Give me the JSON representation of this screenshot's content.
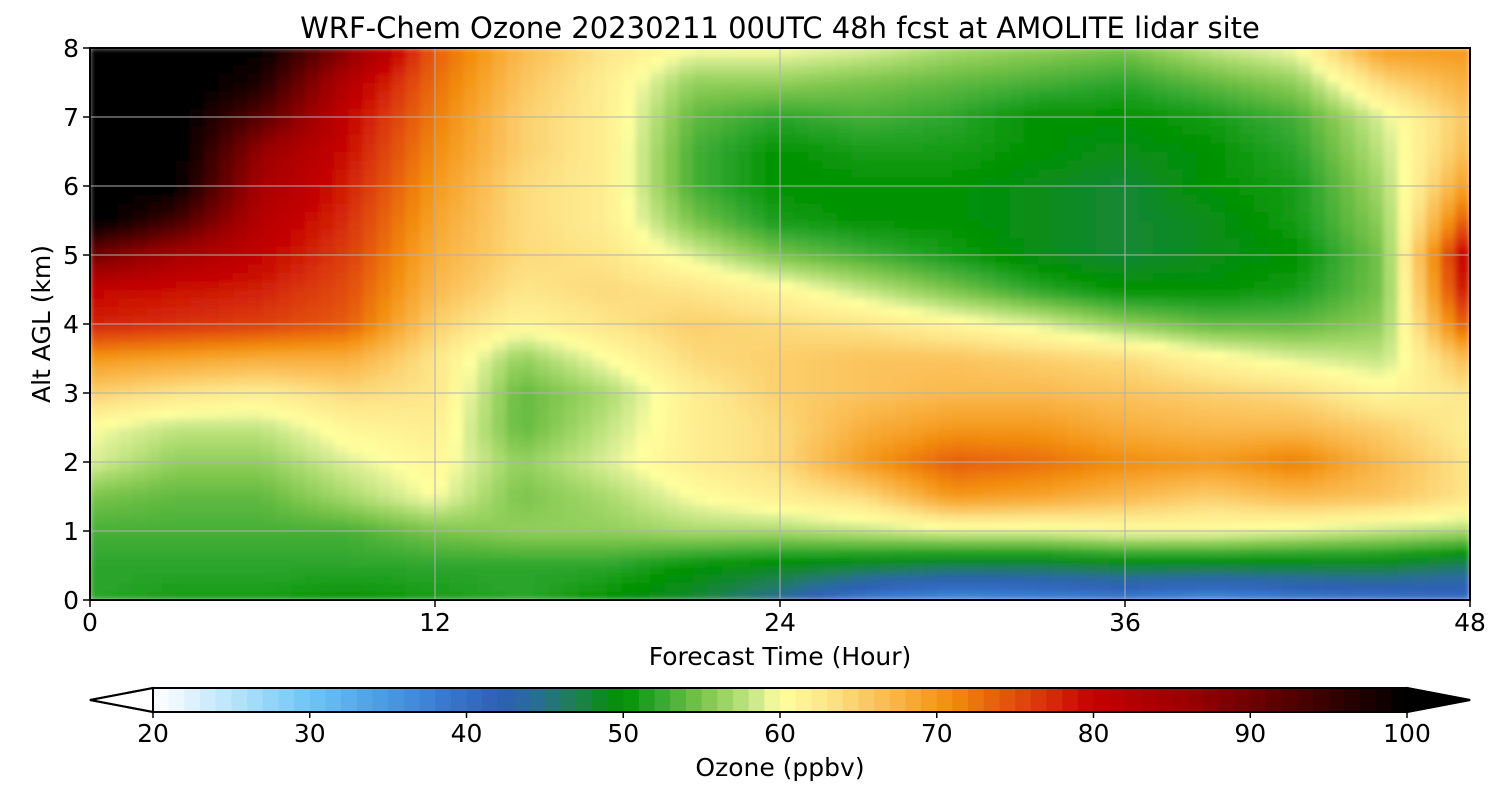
{
  "chart_data": {
    "type": "heatmap",
    "title": "WRF-Chem Ozone  20230211 00UTC 48h fcst at AMOLITE lidar site",
    "xlabel": "Forecast Time (Hour)",
    "ylabel": "Alt AGL (km)",
    "xlim": [
      0,
      48
    ],
    "ylim": [
      0,
      8
    ],
    "xticks": [
      "0",
      "12",
      "24",
      "36",
      "48"
    ],
    "yticks": [
      "0",
      "1",
      "2",
      "3",
      "4",
      "5",
      "6",
      "7",
      "8"
    ],
    "grid": true,
    "x_hours": [
      0,
      3,
      6,
      9,
      12,
      15,
      18,
      21,
      24,
      27,
      30,
      33,
      36,
      39,
      42,
      45,
      48
    ],
    "z_km": [
      0,
      0.5,
      1,
      1.5,
      2,
      2.5,
      3,
      3.5,
      4,
      4.5,
      5,
      5.5,
      6,
      6.5,
      7,
      7.5,
      8
    ],
    "ozone_ppbv": [
      [
        52,
        51,
        51,
        50,
        51,
        52,
        50,
        48,
        44,
        38,
        36,
        37,
        38,
        36,
        38,
        39,
        40
      ],
      [
        52,
        52,
        52,
        52,
        52,
        52,
        52,
        50,
        49,
        48,
        47,
        47,
        48,
        48,
        48,
        48,
        46
      ],
      [
        53,
        53,
        53,
        53,
        55,
        56,
        56,
        57,
        57,
        58,
        59,
        59,
        60,
        60,
        59,
        58,
        57
      ],
      [
        55,
        54,
        54,
        57,
        60,
        55,
        57,
        60,
        62,
        64,
        70,
        69,
        67,
        65,
        67,
        66,
        63
      ],
      [
        59,
        56,
        56,
        59,
        61,
        56,
        59,
        62,
        64,
        70,
        74,
        73,
        71,
        70,
        72,
        67,
        63
      ],
      [
        60,
        58,
        58,
        61,
        62,
        54,
        58,
        62,
        64,
        68,
        70,
        70,
        68,
        67,
        67,
        65,
        62
      ],
      [
        65,
        63,
        62,
        64,
        63,
        54,
        57,
        62,
        65,
        66,
        67,
        67,
        66,
        65,
        64,
        61,
        63
      ],
      [
        70,
        69,
        68,
        68,
        63,
        56,
        60,
        64,
        65,
        66,
        66,
        65,
        64,
        61,
        59,
        58,
        67
      ],
      [
        78,
        77,
        76,
        74,
        65,
        61,
        63,
        65,
        64,
        63,
        61,
        59,
        56,
        54,
        54,
        56,
        75
      ],
      [
        80,
        79,
        78,
        75,
        67,
        63,
        64,
        63,
        61,
        58,
        55,
        52,
        50,
        50,
        51,
        55,
        80
      ],
      [
        90,
        84,
        80,
        76,
        68,
        64,
        63,
        59,
        55,
        53,
        51,
        49,
        48,
        49,
        50,
        55,
        82
      ],
      [
        101,
        94,
        82,
        77,
        69,
        64,
        62,
        55,
        51,
        50,
        50,
        49,
        48,
        49,
        51,
        56,
        75
      ],
      [
        102,
        100,
        84,
        78,
        70,
        64,
        62,
        53,
        50,
        50,
        50,
        49,
        48,
        50,
        51,
        57,
        70
      ],
      [
        102,
        101,
        86,
        79,
        71,
        65,
        62,
        53,
        50,
        51,
        51,
        50,
        49,
        50,
        52,
        58,
        67
      ],
      [
        102,
        101,
        92,
        80,
        72,
        65,
        62,
        54,
        52,
        53,
        52,
        50,
        50,
        51,
        53,
        59,
        66
      ],
      [
        102,
        102,
        97,
        82,
        73,
        66,
        62,
        56,
        56,
        55,
        54,
        53,
        52,
        54,
        56,
        64,
        68
      ],
      [
        102,
        102,
        100,
        88,
        74,
        67,
        63,
        60,
        60,
        59,
        57,
        56,
        55,
        58,
        60,
        70,
        70
      ]
    ],
    "colorbar": {
      "label": "Ozone  (ppbv)",
      "min": 20,
      "max": 100,
      "extend": "both",
      "ticks": [
        "20",
        "30",
        "40",
        "50",
        "60",
        "70",
        "80",
        "90",
        "100"
      ],
      "stops": [
        {
          "v": 20,
          "c": "#ffffff"
        },
        {
          "v": 22,
          "c": "#e6f4fd"
        },
        {
          "v": 26,
          "c": "#a9dff9"
        },
        {
          "v": 30,
          "c": "#6ec5f6"
        },
        {
          "v": 34,
          "c": "#4ea2e6"
        },
        {
          "v": 38,
          "c": "#3a7ed4"
        },
        {
          "v": 42,
          "c": "#2e5fb5"
        },
        {
          "v": 44,
          "c": "#2a6aa0"
        },
        {
          "v": 47,
          "c": "#1e8050"
        },
        {
          "v": 50,
          "c": "#009200"
        },
        {
          "v": 52,
          "c": "#2ca52c"
        },
        {
          "v": 55,
          "c": "#7ac44a"
        },
        {
          "v": 57,
          "c": "#a8da6c"
        },
        {
          "v": 59,
          "c": "#dcef96"
        },
        {
          "v": 60,
          "c": "#ffff9e"
        },
        {
          "v": 63,
          "c": "#fde68a"
        },
        {
          "v": 66,
          "c": "#fbc35c"
        },
        {
          "v": 69,
          "c": "#f7a42c"
        },
        {
          "v": 71,
          "c": "#f28c0c"
        },
        {
          "v": 74,
          "c": "#e65c0c"
        },
        {
          "v": 77,
          "c": "#d8300a"
        },
        {
          "v": 80,
          "c": "#c40000"
        },
        {
          "v": 86,
          "c": "#9a0000"
        },
        {
          "v": 92,
          "c": "#5a0000"
        },
        {
          "v": 97,
          "c": "#200000"
        },
        {
          "v": 100,
          "c": "#000000"
        }
      ]
    }
  }
}
